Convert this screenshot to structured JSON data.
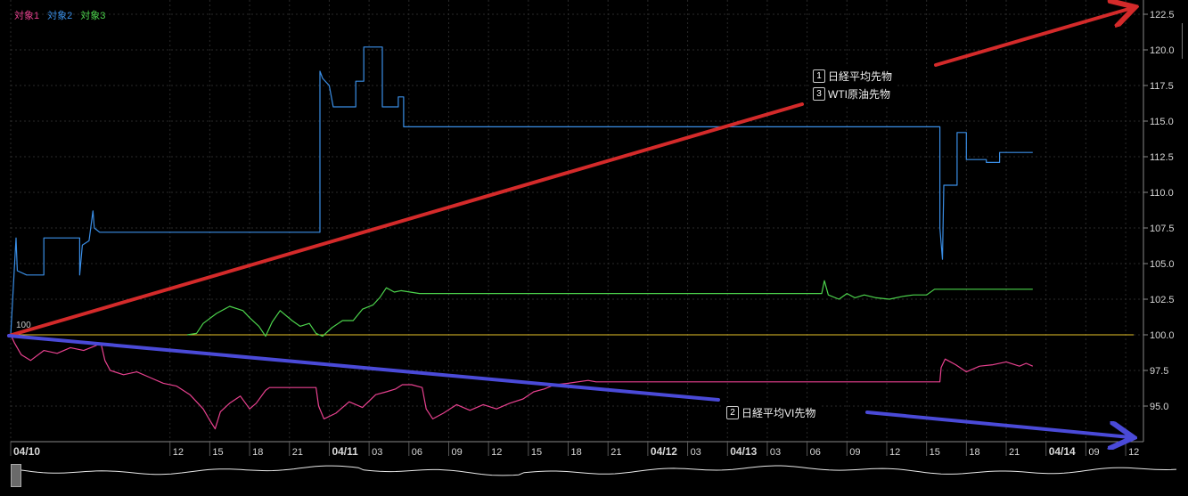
{
  "legend": [
    {
      "label": "対象1",
      "color": "#e8418f"
    },
    {
      "label": "対象2",
      "color": "#3a8ee6"
    },
    {
      "label": "対象3",
      "color": "#4cd34c"
    }
  ],
  "annotations": {
    "box_top": [
      {
        "num": "1",
        "label": "日経平均先物"
      },
      {
        "num": "3",
        "label": "WTI原油先物"
      }
    ],
    "box_bottom": [
      {
        "num": "2",
        "label": "日経平均VI先物"
      }
    ]
  },
  "colors": {
    "series1": "#e8418f",
    "series2": "#3a8ee6",
    "series3": "#4cd34c",
    "baseline": "#e6c229",
    "arrow_red": "#d42a2a",
    "arrow_blue": "#4a4ad8",
    "grid": "#2a2a2a",
    "axis_text": "#d8d8d8"
  },
  "chart_data": {
    "type": "line",
    "base_label": "100",
    "ylim": [
      92.5,
      123.5
    ],
    "y_ticks": [
      "95.0",
      "97.5",
      "100.0",
      "102.5",
      "105.0",
      "107.5",
      "110.0",
      "112.5",
      "115.0",
      "117.5",
      "120.0",
      "122.5"
    ],
    "x_ticks": [
      {
        "t": 0,
        "label": "04/10",
        "bold": true
      },
      {
        "t": 12,
        "label": "12"
      },
      {
        "t": 15,
        "label": "15"
      },
      {
        "t": 18,
        "label": "18"
      },
      {
        "t": 21,
        "label": "21"
      },
      {
        "t": 24,
        "label": "04/11",
        "bold": true
      },
      {
        "t": 27,
        "label": "03"
      },
      {
        "t": 30,
        "label": "06"
      },
      {
        "t": 33,
        "label": "09"
      },
      {
        "t": 36,
        "label": "12"
      },
      {
        "t": 39,
        "label": "15"
      },
      {
        "t": 42,
        "label": "18"
      },
      {
        "t": 45,
        "label": "21"
      },
      {
        "t": 48,
        "label": "04/12",
        "bold": true
      },
      {
        "t": 51,
        "label": "03"
      },
      {
        "t": 54,
        "label": "04/13",
        "bold": true
      },
      {
        "t": 57,
        "label": "03"
      },
      {
        "t": 60,
        "label": "06"
      },
      {
        "t": 63,
        "label": "09"
      },
      {
        "t": 66,
        "label": "12"
      },
      {
        "t": 69,
        "label": "15"
      },
      {
        "t": 72,
        "label": "18"
      },
      {
        "t": 75,
        "label": "21"
      },
      {
        "t": 78,
        "label": "04/14",
        "bold": true
      },
      {
        "t": 81,
        "label": "09"
      },
      {
        "t": 84,
        "label": "12"
      }
    ],
    "series": [
      {
        "name": "対象2",
        "step": true,
        "points": [
          [
            0,
            100
          ],
          [
            0.4,
            106.8
          ],
          [
            0.5,
            104.5
          ],
          [
            1.2,
            104.2
          ],
          [
            2.5,
            104.2
          ],
          [
            2.5,
            106.8
          ],
          [
            5.2,
            106.8
          ],
          [
            5.2,
            104.2
          ],
          [
            5.4,
            106.3
          ],
          [
            5.9,
            106.6
          ],
          [
            6.2,
            108.7
          ],
          [
            6.3,
            107.5
          ],
          [
            6.7,
            107.2
          ],
          [
            23.3,
            107.2
          ],
          [
            23.3,
            118.5
          ],
          [
            23.5,
            118.0
          ],
          [
            24.0,
            117.5
          ],
          [
            24.3,
            116.0
          ],
          [
            26.0,
            116.0
          ],
          [
            26.0,
            117.8
          ],
          [
            26.6,
            117.8
          ],
          [
            26.6,
            120.2
          ],
          [
            28.0,
            120.2
          ],
          [
            28.0,
            116.0
          ],
          [
            29.2,
            116.0
          ],
          [
            29.2,
            116.7
          ],
          [
            29.6,
            116.7
          ],
          [
            29.6,
            114.6
          ],
          [
            70.0,
            114.6
          ],
          [
            70.0,
            107.5
          ],
          [
            70.2,
            105.3
          ],
          [
            70.3,
            110.5
          ],
          [
            71.3,
            110.5
          ],
          [
            71.3,
            114.2
          ],
          [
            72.0,
            114.2
          ],
          [
            72.0,
            112.3
          ],
          [
            73.5,
            112.3
          ],
          [
            73.5,
            112.1
          ],
          [
            74.5,
            112.1
          ],
          [
            74.5,
            112.8
          ],
          [
            77.0,
            112.8
          ]
        ]
      },
      {
        "name": "対象3",
        "points": [
          [
            13.3,
            100.0
          ],
          [
            14.0,
            100.1
          ],
          [
            14.5,
            100.8
          ],
          [
            15.5,
            101.5
          ],
          [
            16.5,
            102.0
          ],
          [
            17.5,
            101.7
          ],
          [
            18.0,
            101.2
          ],
          [
            18.7,
            100.6
          ],
          [
            19.2,
            99.9
          ],
          [
            19.7,
            100.9
          ],
          [
            20.3,
            101.7
          ],
          [
            21.2,
            101.0
          ],
          [
            21.8,
            100.6
          ],
          [
            22.5,
            100.8
          ],
          [
            23.0,
            100.1
          ],
          [
            23.5,
            99.9
          ],
          [
            24.2,
            100.5
          ],
          [
            25.0,
            101.0
          ],
          [
            25.8,
            101.0
          ],
          [
            26.5,
            101.8
          ],
          [
            27.3,
            102.1
          ],
          [
            27.8,
            102.6
          ],
          [
            28.3,
            103.3
          ],
          [
            28.9,
            103.0
          ],
          [
            29.4,
            103.1
          ],
          [
            30.1,
            103.0
          ],
          [
            30.8,
            102.9
          ],
          [
            61.1,
            102.9
          ],
          [
            61.3,
            103.8
          ],
          [
            61.6,
            102.8
          ],
          [
            62.4,
            102.5
          ],
          [
            63.0,
            102.9
          ],
          [
            63.6,
            102.6
          ],
          [
            64.3,
            102.8
          ],
          [
            65.2,
            102.6
          ],
          [
            66.2,
            102.5
          ],
          [
            67.2,
            102.7
          ],
          [
            68.0,
            102.8
          ],
          [
            69.0,
            102.8
          ],
          [
            69.6,
            103.2
          ],
          [
            70.1,
            103.2
          ],
          [
            77.0,
            103.2
          ]
        ]
      },
      {
        "name": "対象1",
        "points": [
          [
            0,
            100.0
          ],
          [
            0.3,
            99.4
          ],
          [
            0.8,
            98.6
          ],
          [
            1.5,
            98.2
          ],
          [
            2.5,
            98.9
          ],
          [
            3.5,
            98.7
          ],
          [
            4.5,
            99.1
          ],
          [
            5.5,
            98.9
          ],
          [
            6.3,
            99.2
          ],
          [
            6.8,
            99.4
          ],
          [
            7.1,
            98.2
          ],
          [
            7.5,
            97.5
          ],
          [
            8.5,
            97.2
          ],
          [
            9.5,
            97.4
          ],
          [
            10.5,
            97.0
          ],
          [
            11.5,
            96.6
          ],
          [
            12.5,
            96.4
          ],
          [
            13.5,
            95.8
          ],
          [
            14.5,
            94.8
          ],
          [
            15.0,
            94.0
          ],
          [
            15.4,
            93.4
          ],
          [
            15.8,
            94.6
          ],
          [
            16.5,
            95.2
          ],
          [
            17.3,
            95.7
          ],
          [
            18.0,
            94.8
          ],
          [
            18.5,
            95.2
          ],
          [
            19.2,
            96.1
          ],
          [
            19.5,
            96.3
          ],
          [
            23.0,
            96.3
          ],
          [
            23.2,
            95.0
          ],
          [
            23.6,
            94.1
          ],
          [
            24.5,
            94.5
          ],
          [
            25.5,
            95.3
          ],
          [
            26.5,
            94.9
          ],
          [
            27.5,
            95.8
          ],
          [
            28.3,
            96.0
          ],
          [
            29.0,
            96.2
          ],
          [
            29.5,
            96.5
          ],
          [
            30.2,
            96.5
          ],
          [
            31.0,
            96.3
          ],
          [
            31.3,
            94.8
          ],
          [
            31.8,
            94.1
          ],
          [
            32.6,
            94.5
          ],
          [
            33.6,
            95.1
          ],
          [
            34.6,
            94.7
          ],
          [
            35.6,
            95.1
          ],
          [
            36.6,
            94.8
          ],
          [
            37.6,
            95.2
          ],
          [
            38.6,
            95.5
          ],
          [
            39.4,
            96.0
          ],
          [
            40.2,
            96.2
          ],
          [
            41.0,
            96.5
          ],
          [
            42.0,
            96.6
          ],
          [
            43.5,
            96.8
          ],
          [
            44.1,
            96.7
          ],
          [
            70.0,
            96.7
          ],
          [
            70.1,
            97.7
          ],
          [
            70.4,
            98.3
          ],
          [
            71.2,
            97.9
          ],
          [
            72.0,
            97.4
          ],
          [
            73.0,
            97.8
          ],
          [
            74.0,
            97.9
          ],
          [
            75.0,
            98.1
          ],
          [
            76.0,
            97.8
          ],
          [
            76.5,
            98.0
          ],
          [
            77.0,
            97.8
          ]
        ]
      }
    ]
  }
}
